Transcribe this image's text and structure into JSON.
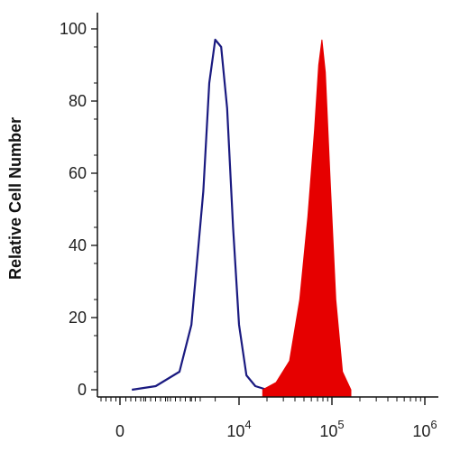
{
  "chart_data": {
    "type": "area",
    "title": "",
    "xlabel": "",
    "ylabel": "Relative Cell Number",
    "xscale": "biexponential",
    "ylim": [
      0,
      100
    ],
    "yticks": [
      0,
      20,
      40,
      60,
      80,
      100
    ],
    "xtick_labels": [
      {
        "base": "0",
        "exp": ""
      },
      {
        "base": "10",
        "exp": "4"
      },
      {
        "base": "10",
        "exp": "5"
      },
      {
        "base": "10",
        "exp": "6"
      }
    ],
    "grid": false,
    "legend": "none",
    "series": [
      {
        "style": "outline",
        "color": "#1a1a80",
        "x": [
          1000,
          3000,
          5000,
          6000,
          7000,
          7500,
          8000,
          8500,
          9000,
          9500,
          10000,
          12000,
          15000,
          20000
        ],
        "y": [
          0,
          1,
          5,
          18,
          55,
          85,
          97,
          95,
          78,
          45,
          18,
          4,
          1,
          0
        ]
      },
      {
        "style": "filled",
        "color": "#e60000",
        "x": [
          18000,
          25000,
          35000,
          45000,
          55000,
          65000,
          72000,
          78000,
          85000,
          95000,
          110000,
          130000,
          160000
        ],
        "y": [
          0,
          2,
          8,
          25,
          48,
          72,
          90,
          97,
          88,
          60,
          25,
          5,
          0
        ]
      }
    ]
  }
}
